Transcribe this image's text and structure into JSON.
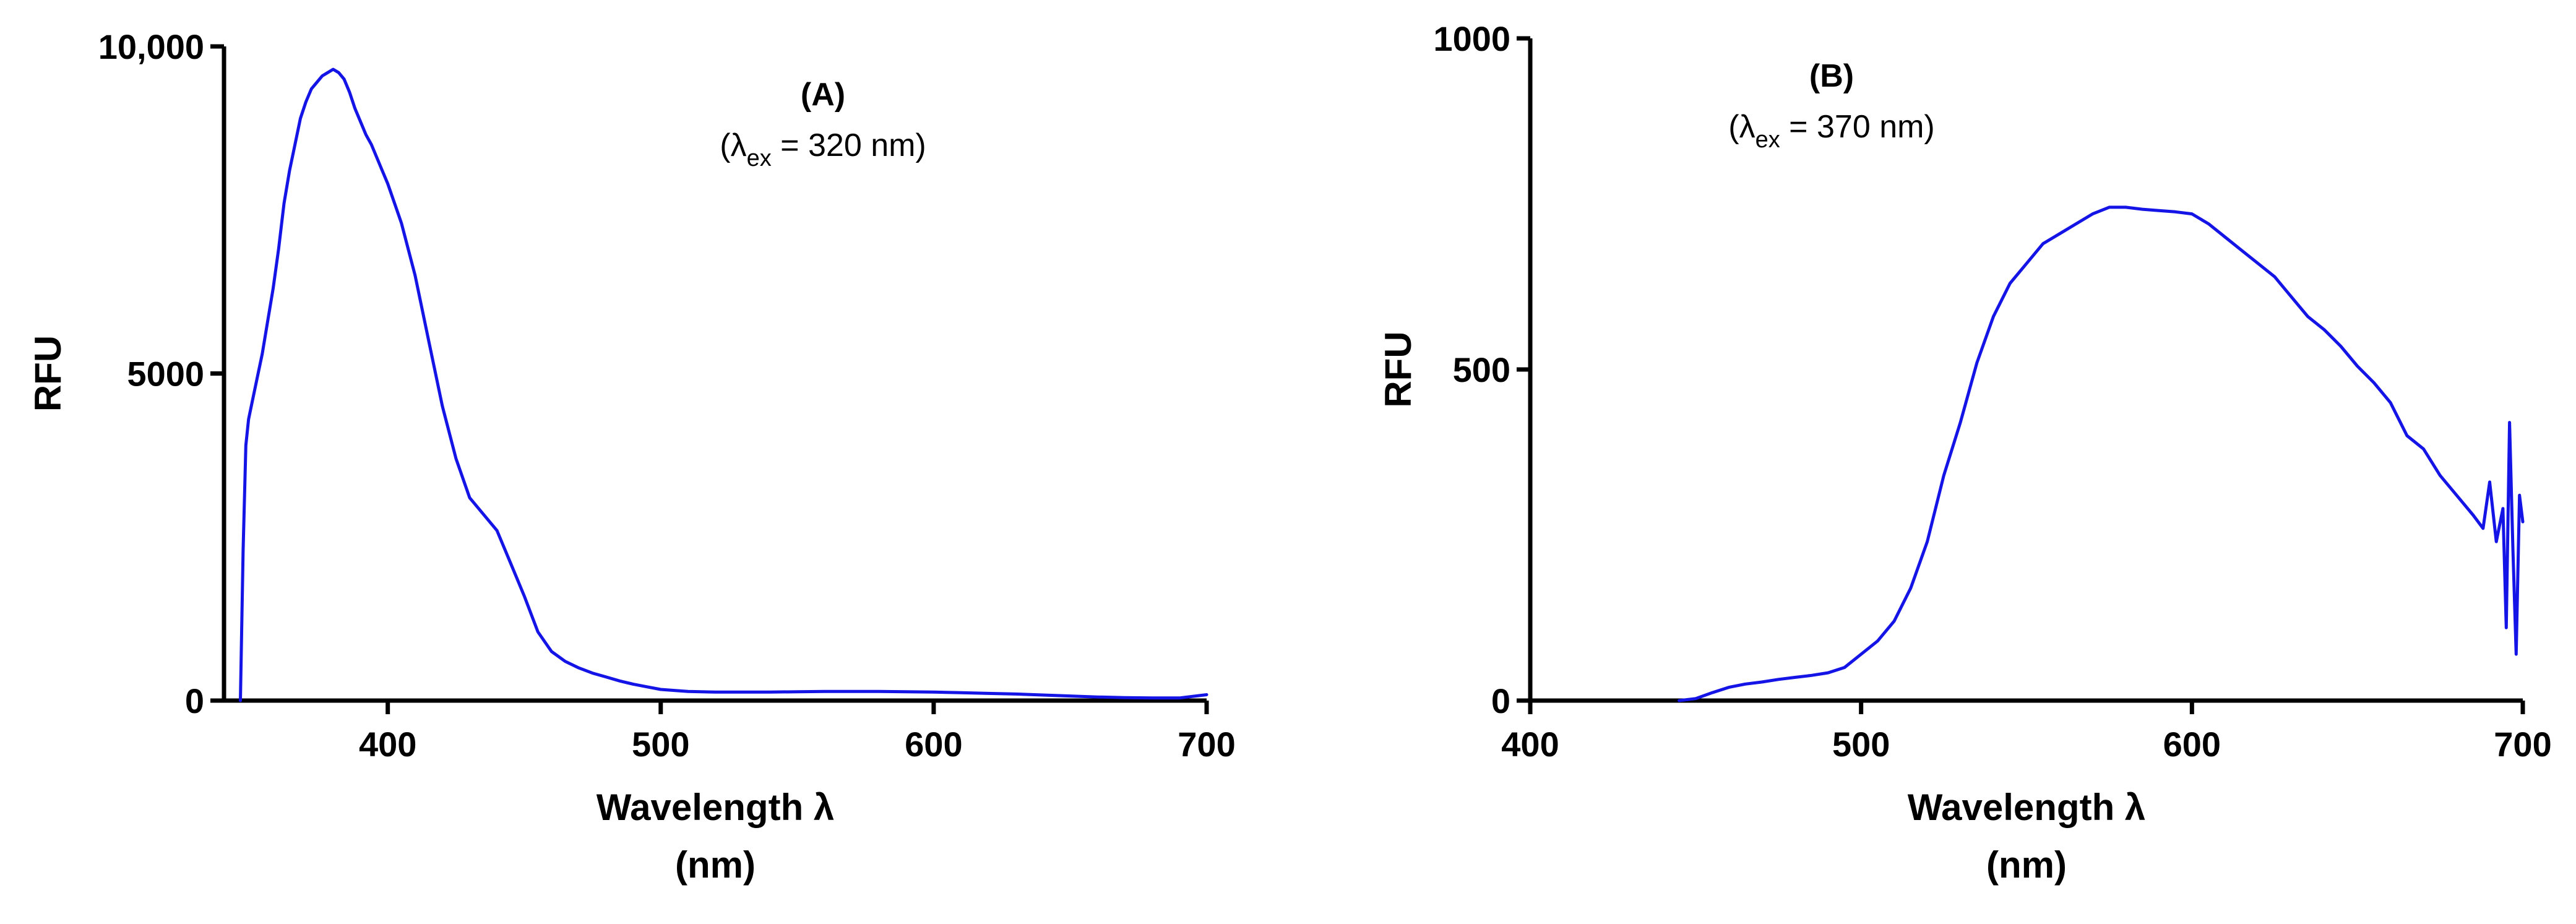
{
  "chart_data": [
    {
      "type": "line",
      "title": "(A)",
      "subtitle": {
        "prefix": "(λ",
        "subscript": "ex",
        "suffix": " = 320 nm)"
      },
      "xlabel": [
        "Wavelength λ",
        "(nm)"
      ],
      "ylabel": "RFU",
      "xlim": [
        340,
        700
      ],
      "ylim": [
        0,
        10000
      ],
      "xticks": [
        400,
        500,
        600,
        700
      ],
      "xtick_labels": [
        "400",
        "500",
        "600",
        "700"
      ],
      "yticks": [
        0,
        5000,
        10000
      ],
      "ytick_labels": [
        "0",
        "5000",
        "10,000"
      ],
      "grid": false,
      "series_color": "#1414e6",
      "series": [
        {
          "x": [
            346,
            347,
            348,
            349,
            350,
            352,
            354,
            356,
            358,
            360,
            362,
            364,
            366,
            368,
            370,
            372,
            374,
            376,
            378,
            380,
            382,
            384,
            386,
            388,
            390,
            392,
            394,
            396,
            398,
            400,
            405,
            410,
            415,
            420,
            425,
            430,
            435,
            440,
            445,
            450,
            455,
            460,
            465,
            470,
            475,
            480,
            485,
            490,
            495,
            500,
            510,
            520,
            530,
            540,
            550,
            560,
            570,
            580,
            590,
            600,
            610,
            620,
            630,
            640,
            650,
            660,
            670,
            680,
            690,
            700
          ],
          "y": [
            0,
            2300,
            3900,
            4300,
            4500,
            4900,
            5300,
            5800,
            6300,
            6900,
            7600,
            8100,
            8500,
            8900,
            9150,
            9350,
            9450,
            9550,
            9600,
            9650,
            9600,
            9500,
            9300,
            9050,
            8850,
            8650,
            8500,
            8300,
            8100,
            7900,
            7300,
            6500,
            5500,
            4500,
            3700,
            3100,
            2850,
            2600,
            2100,
            1600,
            1050,
            750,
            600,
            500,
            420,
            360,
            300,
            250,
            210,
            170,
            140,
            130,
            130,
            130,
            135,
            140,
            140,
            140,
            135,
            130,
            120,
            110,
            100,
            85,
            70,
            55,
            45,
            40,
            40,
            90
          ]
        }
      ]
    },
    {
      "type": "line",
      "title": "(B)",
      "subtitle": {
        "prefix": "(λ",
        "subscript": "ex",
        "suffix": " = 370 nm)"
      },
      "xlabel": [
        "Wavelength λ",
        "(nm)"
      ],
      "ylabel": "RFU",
      "xlim": [
        400,
        700
      ],
      "ylim": [
        0,
        1000
      ],
      "xticks": [
        400,
        500,
        600,
        700
      ],
      "xtick_labels": [
        "400",
        "500",
        "600",
        "700"
      ],
      "yticks": [
        0,
        500,
        1000
      ],
      "ytick_labels": [
        "0",
        "500",
        "1000"
      ],
      "grid": false,
      "series_color": "#1414e6",
      "series": [
        {
          "x": [
            445,
            450,
            455,
            460,
            465,
            470,
            475,
            480,
            485,
            490,
            495,
            500,
            505,
            510,
            515,
            520,
            525,
            530,
            535,
            540,
            545,
            550,
            555,
            560,
            565,
            570,
            575,
            580,
            585,
            590,
            595,
            600,
            605,
            610,
            615,
            620,
            625,
            630,
            635,
            640,
            645,
            650,
            655,
            660,
            665,
            670,
            675,
            680,
            685,
            688,
            690,
            692,
            694,
            695,
            696,
            697,
            698,
            699,
            700
          ],
          "y": [
            0,
            3,
            12,
            20,
            25,
            28,
            32,
            35,
            38,
            42,
            50,
            70,
            90,
            120,
            170,
            240,
            340,
            420,
            510,
            580,
            630,
            660,
            690,
            705,
            720,
            735,
            745,
            745,
            742,
            740,
            738,
            735,
            720,
            700,
            680,
            660,
            640,
            610,
            580,
            560,
            535,
            505,
            480,
            450,
            400,
            380,
            340,
            310,
            280,
            260,
            330,
            240,
            290,
            110,
            420,
            230,
            70,
            310,
            270
          ]
        }
      ]
    }
  ]
}
